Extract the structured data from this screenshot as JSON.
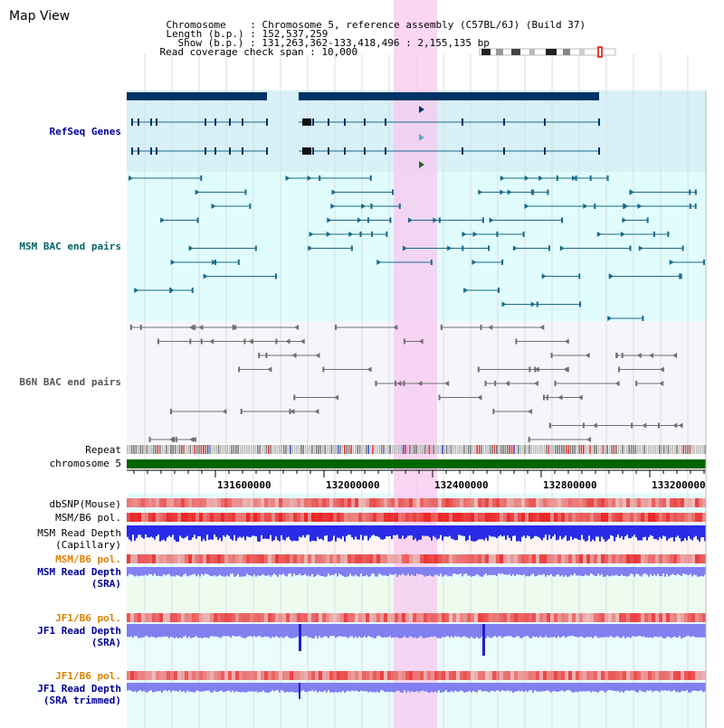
{
  "header": {
    "title": "Map View",
    "chromosome_key": "Chromosome",
    "chromosome_value": "Chromosome 5, reference assembly (C57BL/6J) (Build 37)",
    "length_key": "Length (b.p.)",
    "length_value": "152,537,259",
    "show_key": "Show (b.p.)",
    "show_value": "131,263,362-133,418,496 : 2,155,135 bp",
    "coverage_key": "Read coverage check span",
    "coverage_value": "10,000",
    "separator": ":"
  },
  "tracks": {
    "refseq": "RefSeq Genes",
    "msm_bac": "MSM BAC end pairs",
    "b6n_bac": "B6N BAC end pairs",
    "repeat": "Repeat",
    "chromosome": "chromosome 5",
    "dbsnp": "dbSNP(Mouse)",
    "msm_b6_pol_1": "MSM/B6 pol.",
    "msm_depth_cap_1": "MSM Read Depth",
    "msm_depth_cap_2": "(Capillary)",
    "msm_b6_pol_2": "MSM/B6 pol.",
    "msm_depth_sra_1": "MSM Read Depth",
    "msm_depth_sra_2": "(SRA)",
    "jf1_b6_pol_1": "JF1/B6 pol.",
    "jf1_depth_sra_1": "JF1 Read Depth",
    "jf1_depth_sra_2": "(SRA)",
    "jf1_b6_pol_2": "JF1/B6 pol.",
    "jf1_depth_trim_1": "JF1 Read Depth",
    "jf1_depth_trim_2": "(SRA trimmed)"
  },
  "axis": {
    "ticks": [
      "131600000",
      "132000000",
      "132400000",
      "132800000",
      "133200000"
    ]
  },
  "colors": {
    "highlight": "#f8c8f0",
    "refseq_bg": "#d8f0f8",
    "msm_bg": "#e0fcfc",
    "b6n_bg": "#f4f6fa",
    "gene": "#003366",
    "msm_feature": "#1a6a8a",
    "b6n_feature": "#707070",
    "chromosome": "#006600",
    "label_blue": "#000099",
    "label_teal": "#006666",
    "label_gray": "#555555",
    "label_orange": "#e08000",
    "depth_blue": "#2a2ae8",
    "depth_light": "#8080f0",
    "pol_red": "#e84040"
  }
}
